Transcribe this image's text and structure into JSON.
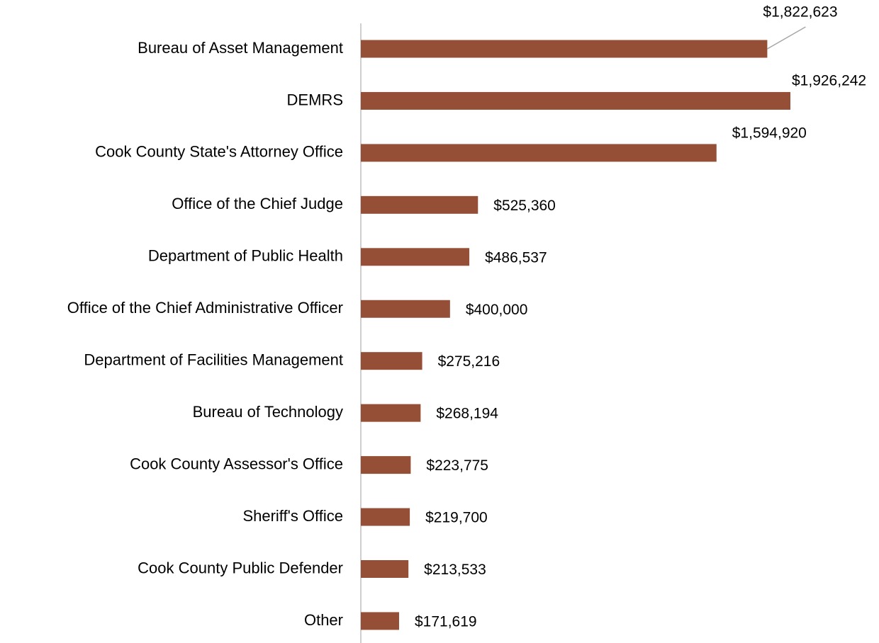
{
  "chart_data": {
    "type": "bar",
    "orientation": "horizontal",
    "categories": [
      "Bureau of Asset Management",
      "DEMRS",
      "Cook County State's Attorney Office",
      "Office of the Chief Judge",
      "Department of Public Health",
      "Office of the Chief Administrative Officer",
      "Department of Facilities Management",
      "Bureau of Technology",
      "Cook County Assessor's Office",
      "Sheriff's Office",
      "Cook County Public Defender",
      "Other"
    ],
    "values": [
      1822623,
      1926242,
      1594920,
      525360,
      486537,
      400000,
      275216,
      268194,
      223775,
      219700,
      213533,
      171619
    ],
    "value_labels": [
      "$1,822,623",
      "$1,926,242",
      "$1,594,920",
      "$525,360",
      "$486,537",
      "$400,000",
      "$275,216",
      "$268,194",
      "$223,775",
      "$219,700",
      "$213,533",
      "$171,619"
    ],
    "color": "#954f36"
  }
}
